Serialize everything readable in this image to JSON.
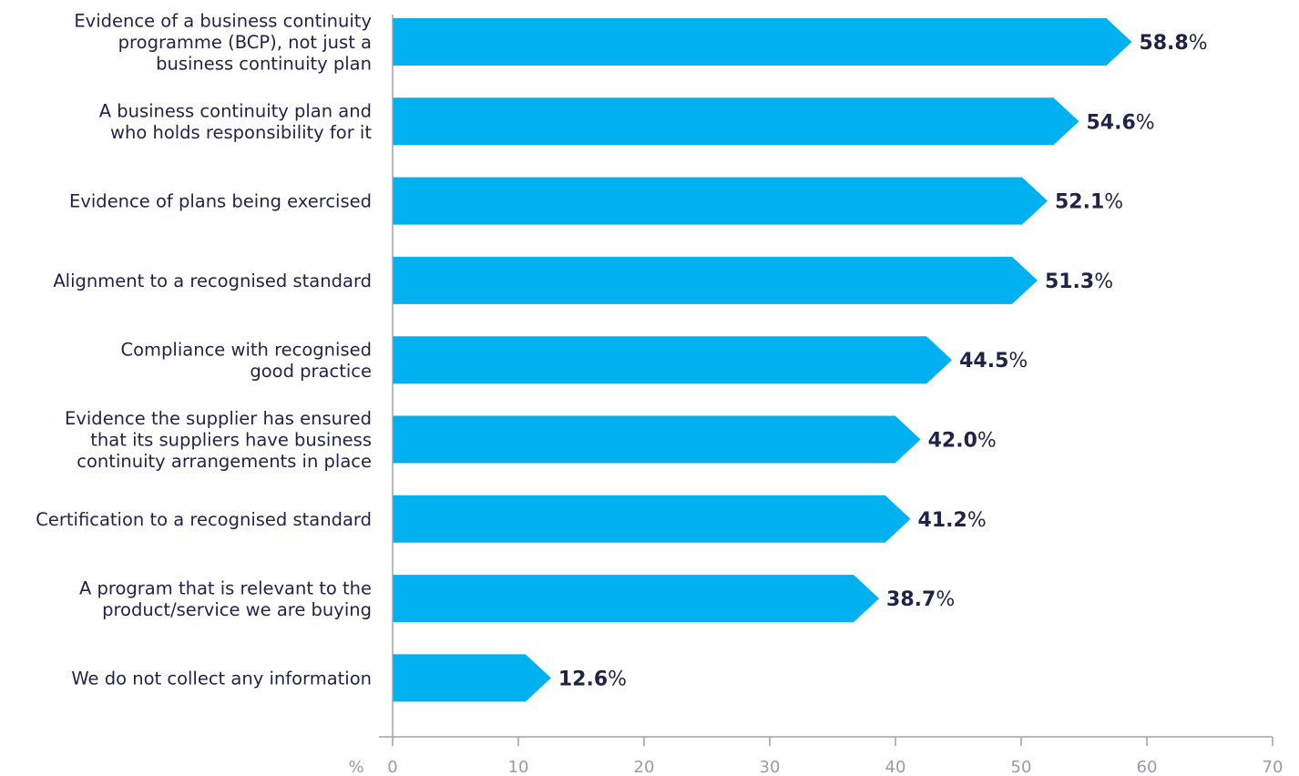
{
  "chart_data": {
    "type": "bar",
    "orientation": "horizontal",
    "title": "",
    "xlabel": "%",
    "ylabel": "",
    "xlim": [
      0,
      70
    ],
    "x_ticks": [
      0,
      10,
      20,
      30,
      40,
      50,
      60,
      70
    ],
    "value_suffix": "%",
    "grid": false,
    "categories": [
      "Evidence of a business continuity programme (BCP), not just a business continuity plan",
      "A business continuity plan and who holds responsibility for it",
      "Evidence of plans being exercised",
      "Alignment to a recognised standard",
      "Compliance with recognised good practice",
      "Evidence the supplier has ensured that its suppliers have business continuity arrangements in place",
      "Certification to a recognised standard",
      "A program that is relevant to the product/service we are buying",
      "We do not collect any information"
    ],
    "category_lines": [
      [
        "Evidence of a business continuity",
        "programme (BCP), not just a",
        "business continuity plan"
      ],
      [
        "A business continuity plan and",
        "who holds responsibility for it"
      ],
      [
        "Evidence of plans being exercised"
      ],
      [
        "Alignment to a recognised standard"
      ],
      [
        "Compliance with recognised",
        "good practice"
      ],
      [
        "Evidence the supplier has ensured",
        "that its suppliers have business",
        "continuity arrangements in place"
      ],
      [
        "Certification to a recognised standard"
      ],
      [
        "A program that is relevant to the",
        "product/service we are buying"
      ],
      [
        "We do not collect any information"
      ]
    ],
    "values": [
      58.8,
      54.6,
      52.1,
      51.3,
      44.5,
      42.0,
      41.2,
      38.7,
      12.6
    ],
    "value_labels": [
      "58.8",
      "54.6",
      "52.1",
      "51.3",
      "44.5",
      "42.0",
      "41.2",
      "38.7",
      "12.6"
    ],
    "colors": {
      "bar": "#00b0ef",
      "value_text": "#1f2347",
      "label_text": "#1f2347",
      "axis": "#a0a1aa",
      "tick_text": "#9a9ba6"
    }
  }
}
